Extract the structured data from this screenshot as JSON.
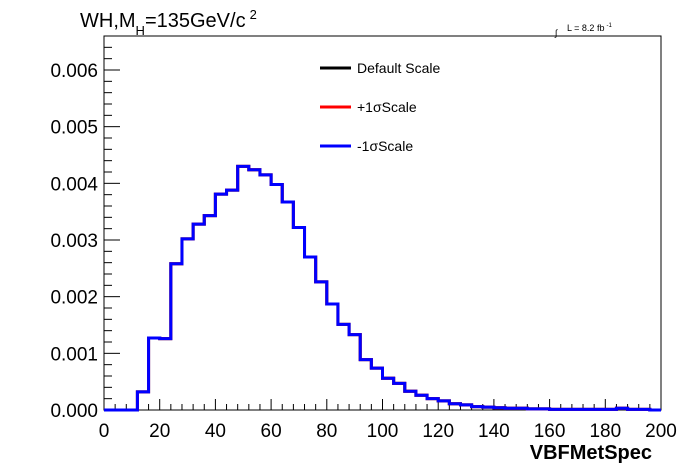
{
  "chart_data": {
    "type": "line",
    "style": "step-histogram",
    "title_main": "WH,M",
    "title_sub": "H",
    "title_rest": "=135GeV/c",
    "title_sup": "2",
    "luminosity_label": "L = 8.2 fb",
    "luminosity_sup": "-1",
    "xlabel": "VBFMetSpec",
    "ylabel": "",
    "xlim": [
      0,
      200
    ],
    "ylim": [
      0,
      0.0066
    ],
    "xticks": [
      0,
      20,
      40,
      60,
      80,
      100,
      120,
      140,
      160,
      180,
      200
    ],
    "yticks": [
      "0.000",
      "0.001",
      "0.002",
      "0.003",
      "0.004",
      "0.005",
      "0.006"
    ],
    "grid": false,
    "legend_position": "top-center",
    "bin_edges": [
      0,
      4,
      8,
      12,
      16,
      20,
      24,
      28,
      32,
      36,
      40,
      44,
      48,
      52,
      56,
      60,
      64,
      68,
      72,
      76,
      80,
      84,
      88,
      92,
      96,
      100,
      104,
      108,
      112,
      116,
      120,
      124,
      128,
      132,
      136,
      140,
      144,
      148,
      152,
      156,
      160,
      164,
      168,
      172,
      176,
      180,
      184,
      188,
      192,
      196,
      200
    ],
    "series": [
      {
        "name": "Default Scale",
        "color": "#000000",
        "values": [
          0,
          0,
          0,
          0.00032,
          0.00127,
          0.00126,
          0.00258,
          0.00302,
          0.00328,
          0.00343,
          0.00381,
          0.00388,
          0.0043,
          0.00424,
          0.00415,
          0.00398,
          0.00367,
          0.00322,
          0.0027,
          0.00226,
          0.00187,
          0.00151,
          0.00133,
          0.00089,
          0.00074,
          0.00056,
          0.00047,
          0.00033,
          0.00026,
          0.0002,
          0.00016,
          0.00011,
          9e-05,
          6e-05,
          5e-05,
          4e-05,
          3e-05,
          3e-05,
          2e-05,
          2e-05,
          1e-05,
          1e-05,
          1e-05,
          1e-05,
          1e-05,
          1e-05,
          3e-05,
          1e-05,
          1e-05,
          0
        ]
      },
      {
        "name": "+1σScale",
        "color": "#ff0000",
        "values": [
          0,
          0,
          0,
          0.00032,
          0.00127,
          0.00126,
          0.00258,
          0.00302,
          0.00328,
          0.00343,
          0.00381,
          0.00388,
          0.0043,
          0.00424,
          0.00415,
          0.00398,
          0.00367,
          0.00322,
          0.0027,
          0.00226,
          0.00187,
          0.00151,
          0.00133,
          0.00089,
          0.00074,
          0.00056,
          0.00047,
          0.00033,
          0.00026,
          0.0002,
          0.00016,
          0.00011,
          9e-05,
          6e-05,
          5e-05,
          4e-05,
          3e-05,
          3e-05,
          2e-05,
          2e-05,
          1e-05,
          1e-05,
          1e-05,
          1e-05,
          1e-05,
          1e-05,
          3e-05,
          1e-05,
          1e-05,
          0
        ]
      },
      {
        "name": "-1σScale",
        "color": "#0000ff",
        "values": [
          0,
          0,
          0,
          0.00032,
          0.00127,
          0.00126,
          0.00258,
          0.00302,
          0.00328,
          0.00343,
          0.00381,
          0.00388,
          0.0043,
          0.00424,
          0.00415,
          0.00398,
          0.00367,
          0.00322,
          0.0027,
          0.00226,
          0.00187,
          0.00151,
          0.00133,
          0.00089,
          0.00074,
          0.00056,
          0.00047,
          0.00033,
          0.00026,
          0.0002,
          0.00016,
          0.00011,
          9e-05,
          6e-05,
          5e-05,
          4e-05,
          3e-05,
          3e-05,
          2e-05,
          2e-05,
          1e-05,
          1e-05,
          1e-05,
          1e-05,
          1e-05,
          1e-05,
          3e-05,
          1e-05,
          1e-05,
          0
        ]
      }
    ]
  }
}
